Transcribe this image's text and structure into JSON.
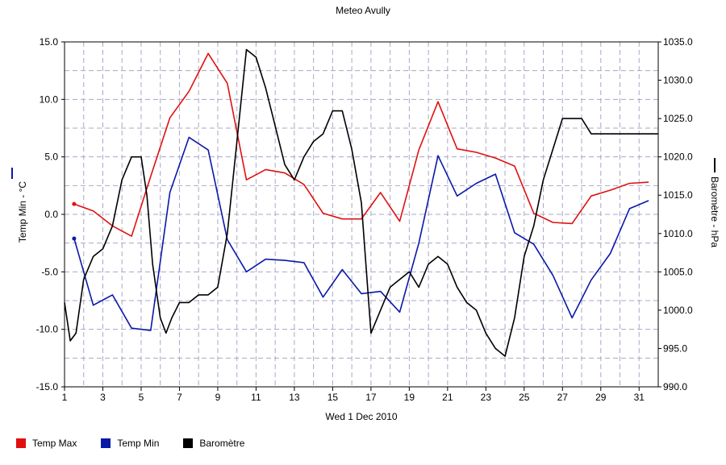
{
  "chart_data": {
    "type": "line",
    "title": "Meteo  Avully",
    "xlabel": "Wed 1 Dec 2010",
    "ylabel_left": "Temp Min - °C",
    "ylabel_right": "Baromètre - hPa",
    "xlim": [
      1,
      32
    ],
    "x_ticks": [
      1,
      3,
      5,
      7,
      9,
      11,
      13,
      15,
      17,
      19,
      21,
      23,
      25,
      27,
      29,
      31
    ],
    "ylim_left": [
      -15,
      15
    ],
    "y_ticks_left": [
      "-15.0",
      "-10.0",
      "-5.0",
      "0.0",
      "5.0",
      "10.0",
      "15.0"
    ],
    "ylim_right": [
      990,
      1035
    ],
    "y_ticks_right": [
      "990.0",
      "995.0",
      "1000.0",
      "1005.0",
      "1010.0",
      "1015.0",
      "1020.0",
      "1025.0",
      "1030.0",
      "1035.0"
    ],
    "grid": true,
    "legend_position": "bottom-left",
    "series": [
      {
        "name": "Temp Max",
        "color": "#e01010",
        "axis": "left",
        "x": [
          1.5,
          2.5,
          3.5,
          4.5,
          5.5,
          6.5,
          7.5,
          8.5,
          9.5,
          10.5,
          11.5,
          12.5,
          13.5,
          14.5,
          15.5,
          16.5,
          17.5,
          18.5,
          19.5,
          20.5,
          21.5,
          22.5,
          23.5,
          24.5,
          25.5,
          26.5,
          27.5,
          28.5,
          29.5,
          30.5,
          31.5
        ],
        "values": [
          0.9,
          0.3,
          -1.0,
          -1.9,
          3.3,
          8.4,
          10.7,
          14.0,
          11.4,
          3.0,
          3.9,
          3.6,
          2.6,
          0.1,
          -0.4,
          -0.4,
          1.9,
          -0.6,
          5.6,
          9.8,
          5.7,
          5.4,
          4.9,
          4.2,
          0.1,
          -0.7,
          -0.8,
          1.6,
          2.1,
          2.7,
          2.8
        ]
      },
      {
        "name": "Temp Min",
        "color": "#0a18a8",
        "axis": "left",
        "x": [
          1.5,
          2.5,
          3.5,
          4.5,
          5.5,
          6.5,
          7.5,
          8.5,
          9.5,
          10.5,
          11.5,
          12.5,
          13.5,
          14.5,
          15.5,
          16.5,
          17.5,
          18.5,
          19.5,
          20.5,
          21.5,
          22.5,
          23.5,
          24.5,
          25.5,
          26.5,
          27.5,
          28.5,
          29.5,
          30.5,
          31.5
        ],
        "values": [
          -2.1,
          -7.9,
          -7.0,
          -9.9,
          -10.1,
          1.9,
          6.7,
          5.6,
          -2.2,
          -5.0,
          -3.9,
          -4.0,
          -4.2,
          -7.2,
          -4.8,
          -6.9,
          -6.7,
          -8.5,
          -2.5,
          5.1,
          1.6,
          2.7,
          3.5,
          -1.6,
          -2.6,
          -5.3,
          -9.0,
          -5.7,
          -3.4,
          0.5,
          1.2
        ]
      },
      {
        "name": "Baromètre",
        "color": "#000000",
        "axis": "right",
        "x": [
          1,
          1.3,
          1.6,
          2,
          2.5,
          3,
          3.5,
          4,
          4.5,
          5,
          5.3,
          5.6,
          6,
          6.3,
          6.6,
          7,
          7.5,
          8,
          8.5,
          9,
          9.5,
          10,
          10.5,
          11,
          11.5,
          12,
          12.5,
          13,
          13.5,
          14,
          14.5,
          15,
          15.5,
          16,
          16.5,
          17,
          17.5,
          18,
          18.5,
          19,
          19.5,
          20,
          20.5,
          21,
          21.5,
          22,
          22.5,
          23,
          23.5,
          24,
          24.5,
          25,
          25.5,
          26,
          26.5,
          27,
          27.5,
          28,
          28.5,
          29,
          29.5,
          30,
          30.5,
          31,
          31.5,
          32
        ],
        "values": [
          1001,
          996,
          997,
          1004,
          1007,
          1008,
          1011,
          1017,
          1020,
          1020,
          1015,
          1006,
          999,
          997,
          999,
          1001,
          1001,
          1002,
          1002,
          1003,
          1010,
          1022,
          1034,
          1033,
          1029,
          1024,
          1019,
          1017,
          1020,
          1022,
          1023,
          1026,
          1026,
          1021,
          1014,
          997,
          1000,
          1003,
          1004,
          1005,
          1003,
          1006,
          1007,
          1006,
          1003,
          1001,
          1000,
          997,
          995,
          994,
          999,
          1007,
          1011,
          1017,
          1021,
          1025,
          1025,
          1025,
          1023,
          1023,
          1023,
          1023,
          1023,
          1023,
          1023,
          1023
        ]
      }
    ]
  }
}
